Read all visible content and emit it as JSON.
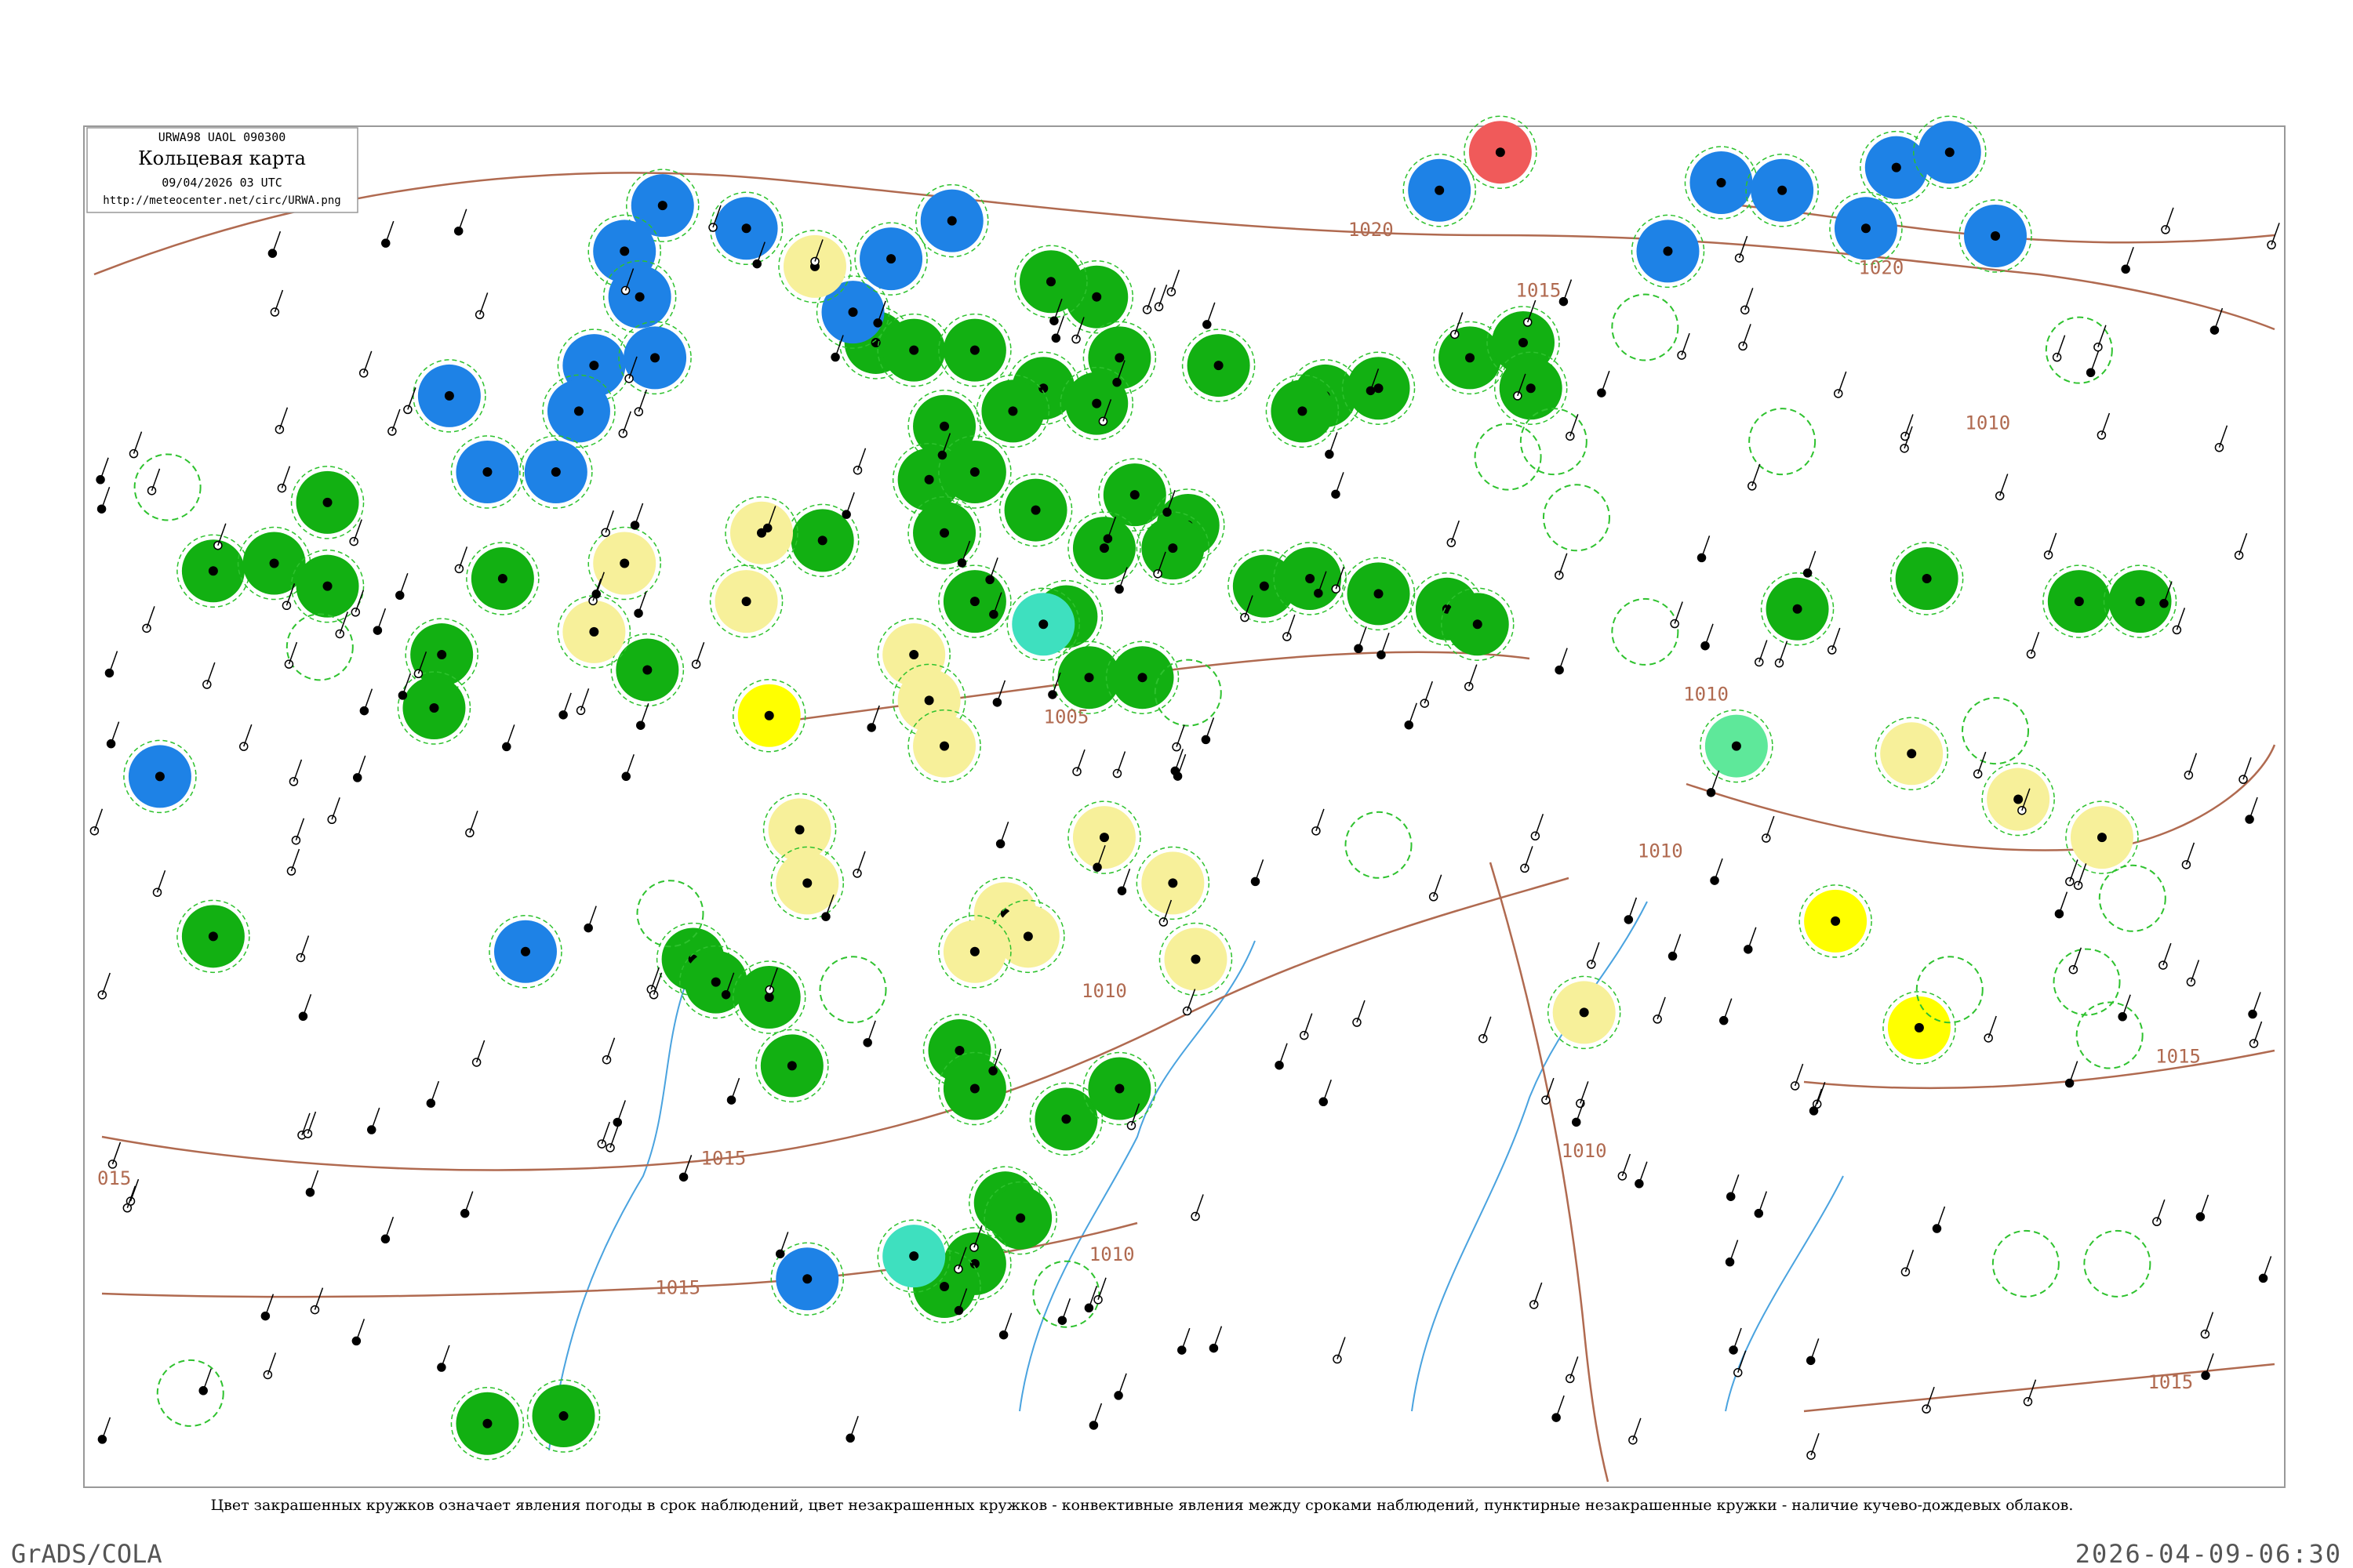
{
  "header": {
    "code": "URWA98  UAOL  090300",
    "title": "Кольцевая карта",
    "datetime": "09/04/2026 03 UTC",
    "url": "http://meteocenter.net/circ/URWA.png"
  },
  "isobar_labels": [
    "1020",
    "1020",
    "1015",
    "1010",
    "1005",
    "1015",
    "1015",
    "1010",
    "1010",
    "1010",
    "1010",
    "1010",
    "1015",
    "1015",
    "015"
  ],
  "caption": "Цвет закрашенных кружков означает явления погоды в срок наблюдений, цвет незакрашенных кружков - конвективные явления между сроками наблюдений, пунктирные незакрашенные кружки - наличие кучево-дождевых облаков.",
  "footer": {
    "software": "GrADS/COLA",
    "timestamp": "2026-04-09-06:30"
  }
}
